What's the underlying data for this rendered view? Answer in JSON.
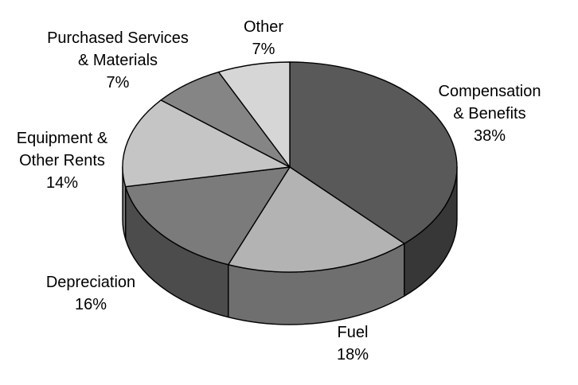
{
  "chart_data": {
    "type": "pie",
    "title": "",
    "style": "3d",
    "slices": [
      {
        "name_lines": [
          "Compensation",
          "& Benefits"
        ],
        "label": "38%",
        "value": 38,
        "color": "#595959"
      },
      {
        "name_lines": [
          "Fuel"
        ],
        "label": "18%",
        "value": 18,
        "color": "#b3b3b3"
      },
      {
        "name_lines": [
          "Depreciation"
        ],
        "label": "16%",
        "value": 16,
        "color": "#7b7b7b"
      },
      {
        "name_lines": [
          "Equipment &",
          "Other Rents"
        ],
        "label": "14%",
        "value": 14,
        "color": "#c5c5c5"
      },
      {
        "name_lines": [
          "Purchased Services",
          "& Materials"
        ],
        "label": "7%",
        "value": 7,
        "color": "#858585"
      },
      {
        "name_lines": [
          "Other"
        ],
        "label": "7%",
        "value": 7,
        "color": "#d6d6d6"
      }
    ]
  }
}
